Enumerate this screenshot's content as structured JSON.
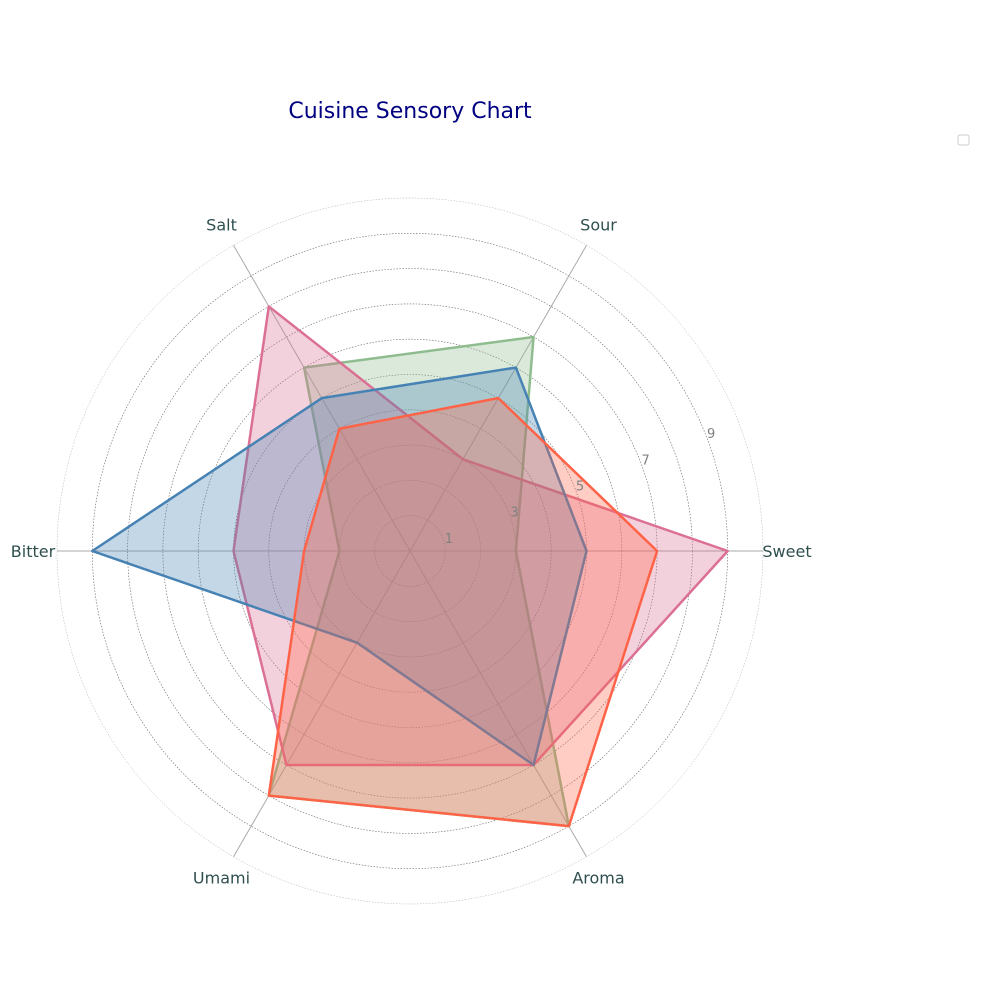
{
  "chart_data": {
    "type": "radar",
    "title": "Cuisine Sensory Chart",
    "categories": [
      "Sweet",
      "Sour",
      "Salt",
      "Bitter",
      "Umami",
      "Aroma"
    ],
    "rlim": [
      0,
      10
    ],
    "ticks": [
      1,
      3,
      5,
      7,
      9
    ],
    "tick_labels": [
      "1",
      "3",
      "5",
      "7",
      "9"
    ],
    "grid": true,
    "legend": "top-right (empty)",
    "series": [
      {
        "color": "#8FBC8F",
        "values": [
          3,
          7,
          6,
          2,
          8,
          9
        ]
      },
      {
        "color": "#DB7093",
        "values": [
          9,
          3,
          8,
          5,
          7,
          7
        ]
      },
      {
        "color": "#4682B4",
        "values": [
          5,
          6,
          5,
          9,
          3,
          7
        ]
      },
      {
        "color": "#FF6347",
        "values": [
          7,
          5,
          4,
          3,
          8,
          9
        ]
      }
    ]
  }
}
